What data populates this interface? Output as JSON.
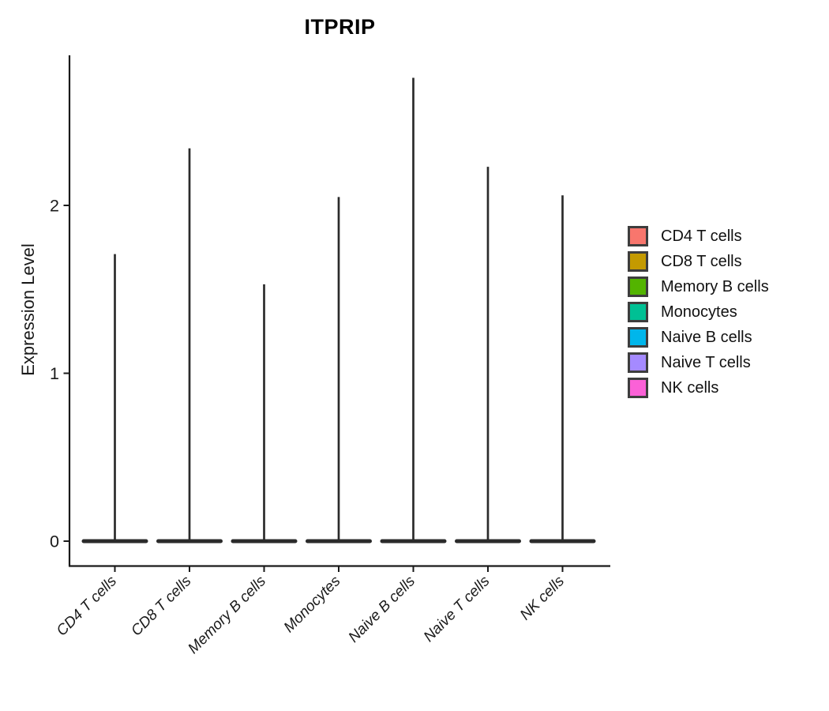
{
  "chart_data": {
    "type": "violin",
    "title": "ITPRIP",
    "xlabel": "",
    "ylabel": "Expression Level",
    "categories": [
      "CD4 T cells",
      "CD8 T cells",
      "Memory B cells",
      "Monocytes",
      "Naive B cells",
      "Naive T cells",
      "NK cells"
    ],
    "violins": [
      {
        "label": "CD4 T cells",
        "color": "#F8766D",
        "max_expression": 1.71,
        "bulk_at": 0
      },
      {
        "label": "CD8 T cells",
        "color": "#C49A00",
        "max_expression": 2.34,
        "bulk_at": 0
      },
      {
        "label": "Memory B cells",
        "color": "#53B400",
        "max_expression": 1.53,
        "bulk_at": 0
      },
      {
        "label": "Monocytes",
        "color": "#00C094",
        "max_expression": 2.05,
        "bulk_at": 0
      },
      {
        "label": "Naive B cells",
        "color": "#00B6EB",
        "max_expression": 2.76,
        "bulk_at": 0
      },
      {
        "label": "Naive T cells",
        "color": "#A58AFF",
        "max_expression": 2.23,
        "bulk_at": 0
      },
      {
        "label": "NK cells",
        "color": "#FB61D7",
        "max_expression": 2.06,
        "bulk_at": 0
      }
    ],
    "yticks": [
      0,
      1,
      2
    ],
    "ylim": [
      -0.15,
      2.9
    ],
    "grid": false,
    "legend_position": "right",
    "violin_stroke_color": "#2b2b2b",
    "axis_color": "#1a1a1a",
    "note": "Each violin's distribution mass is concentrated at expression 0 (flat wide base) with a thin tail up to max_expression."
  }
}
